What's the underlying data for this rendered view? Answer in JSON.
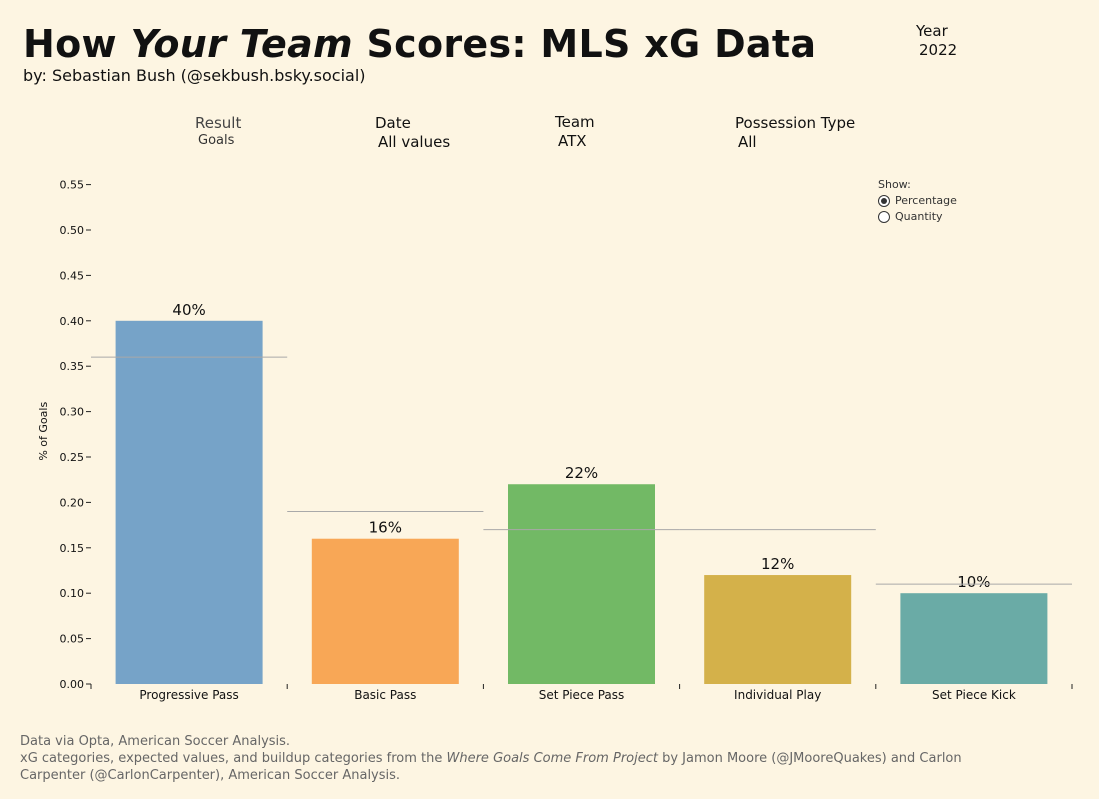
{
  "header": {
    "title_part1": "How ",
    "title_italic": "Your Team",
    "title_part2": "  Scores: MLS xG Data",
    "subtitle": "by: Sebastian Bush (@sekbush.bsky.social)"
  },
  "filters": {
    "year": {
      "label": "Year",
      "value": "2022"
    },
    "result": {
      "label": "Result",
      "value": "Goals"
    },
    "date": {
      "label": "Date",
      "value": "All values"
    },
    "team": {
      "label": "Team",
      "value": "ATX"
    },
    "possession": {
      "label": "Possession Type",
      "value": "All"
    }
  },
  "show": {
    "label": "Show:",
    "options": [
      "Percentage",
      "Quantity"
    ],
    "selected": "Percentage"
  },
  "chart_data": {
    "type": "bar",
    "categories": [
      "Progressive Pass",
      "Basic Pass",
      "Set Piece Pass",
      "Individual Play",
      "Set Piece Kick"
    ],
    "values": [
      0.4,
      0.16,
      0.22,
      0.12,
      0.1
    ],
    "data_labels": [
      "40%",
      "16%",
      "22%",
      "12%",
      "10%"
    ],
    "reference_values": [
      0.36,
      0.19,
      0.17,
      0.17,
      0.11
    ],
    "colors": [
      "#76a3c8",
      "#f8a756",
      "#72b965",
      "#d4b14a",
      "#6aaba6"
    ],
    "reference_color": "#a9a9a9",
    "ylabel": "% of Goals",
    "ylim": [
      0,
      0.57
    ],
    "yticks": [
      "0.00",
      "0.05",
      "0.10",
      "0.15",
      "0.20",
      "0.25",
      "0.30",
      "0.35",
      "0.40",
      "0.45",
      "0.50",
      "0.55"
    ],
    "grid": false
  },
  "footer": {
    "line1": "Data via Opta, American Soccer Analysis.",
    "line2_pre": "xG categories, expected values, and buildup categories from the ",
    "line2_italic": "Where Goals Come From Project",
    "line2_post": " by Jamon Moore (@JMooreQuakes) and Carlon Carpenter (@CarlonCarpenter), American Soccer Analysis."
  }
}
